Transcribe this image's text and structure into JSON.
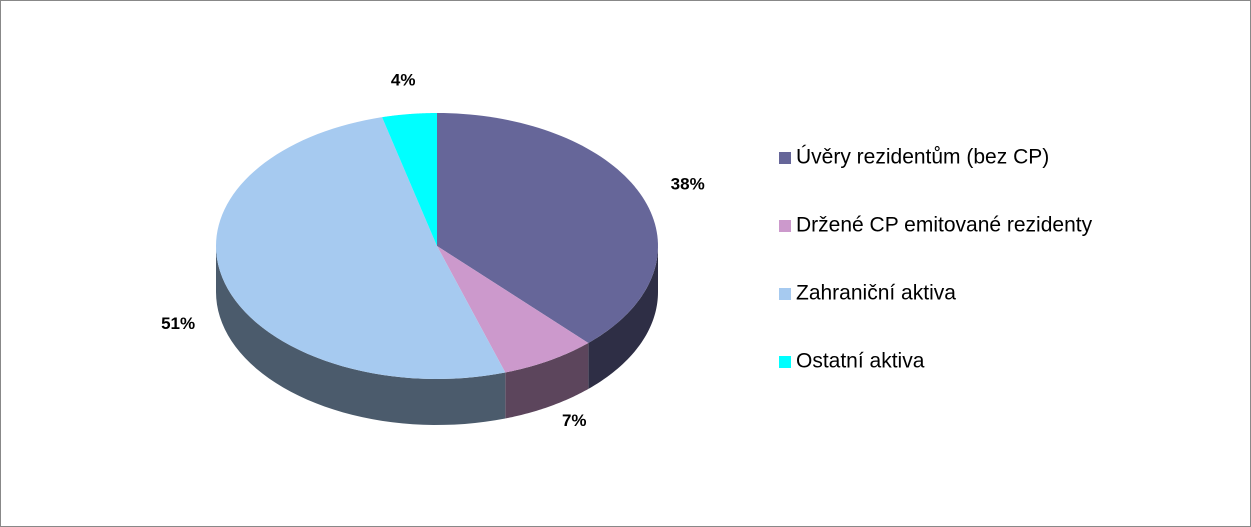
{
  "chart_data": {
    "type": "pie",
    "categories": [
      "Úvěry rezidentům (bez CP)",
      "Držené CP emitované rezidenty",
      "Zahraniční aktiva",
      "Ostatní aktiva"
    ],
    "values": [
      38,
      7,
      51,
      4
    ],
    "value_labels": [
      "38%",
      "7%",
      "51%",
      "4%"
    ],
    "colors": [
      "#666699",
      "#cc99cc",
      "#a6caf0",
      "#00ffff"
    ],
    "legend": "right"
  }
}
